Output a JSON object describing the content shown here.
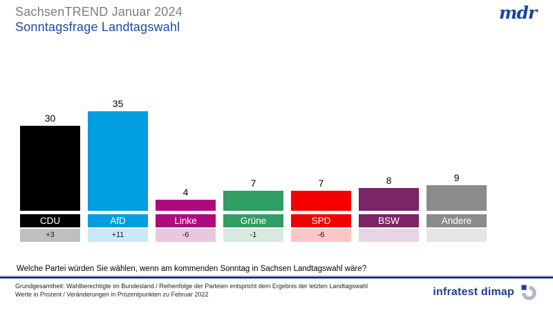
{
  "header": {
    "title": "SachsenTREND Januar 2024",
    "subtitle": "Sonntagsfrage Landtagswahl",
    "broadcaster": "mdr"
  },
  "chart_data": {
    "type": "bar",
    "title": "Sonntagsfrage Landtagswahl",
    "subtitle": "SachsenTREND Januar 2024",
    "categories": [
      "CDU",
      "AfD",
      "Linke",
      "Grüne",
      "SPD",
      "BSW",
      "Andere"
    ],
    "values": [
      30,
      35,
      4,
      7,
      7,
      8,
      9
    ],
    "changes": [
      "+3",
      "+11",
      "-6",
      "-1",
      "-6",
      "",
      ""
    ],
    "bar_colors": [
      "#000000",
      "#009de0",
      "#ae0a7d",
      "#2f9e63",
      "#f40000",
      "#7b2566",
      "#8b8b8b"
    ],
    "change_band_colors": [
      "#bfbfbf",
      "#c9e8f8",
      "#ebc7df",
      "#d8eae0",
      "#fbc6c6",
      "#e8d4e4",
      "#e5e5e5"
    ],
    "unit": "Prozent",
    "ylim": [
      0,
      40
    ],
    "value_labels": "above-bars",
    "legend": "none",
    "grid": false
  },
  "question": "Welche Partei würden Sie wählen, wenn am kommenden Sonntag in Sachsen Landtagswahl wäre?",
  "footer": {
    "line1": "Grundgesamtheit:  Wahlberechtigte  im  Bundesland  / Reihenfolge  der Parteien  entspricht dem  Ergebnis  der  letzten Landtagswahl",
    "line2": "Werte in Prozent / Veränderungen  in Prozentpunkten zu Februar  2022",
    "source": "infratest dimap"
  }
}
